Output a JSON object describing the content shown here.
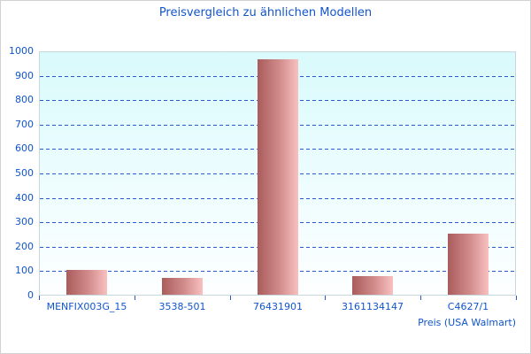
{
  "title": "Preisvergleich zu ähnlichen Modellen",
  "chart_data": {
    "type": "bar",
    "title": "Preisvergleich zu ähnlichen Modellen",
    "categories": [
      "MENFIX003G_15",
      "3538-501",
      "76431901",
      "3161134147",
      "C4627/1"
    ],
    "values": [
      100,
      70,
      965,
      75,
      250
    ],
    "xlabel": "Preis (USA Walmart)",
    "ylabel": "",
    "ylim": [
      0,
      1000
    ],
    "ytick_step": 100,
    "grid": "horizontal-dashed",
    "legend_position": "none",
    "bar_color_gradient": [
      "#aa5c5c",
      "#f9c0c0"
    ],
    "plot_background_gradient": [
      "#d9fafc",
      "#ffffff"
    ],
    "text_color": "#1155cc",
    "gridline_color": "#2a5bcc"
  }
}
